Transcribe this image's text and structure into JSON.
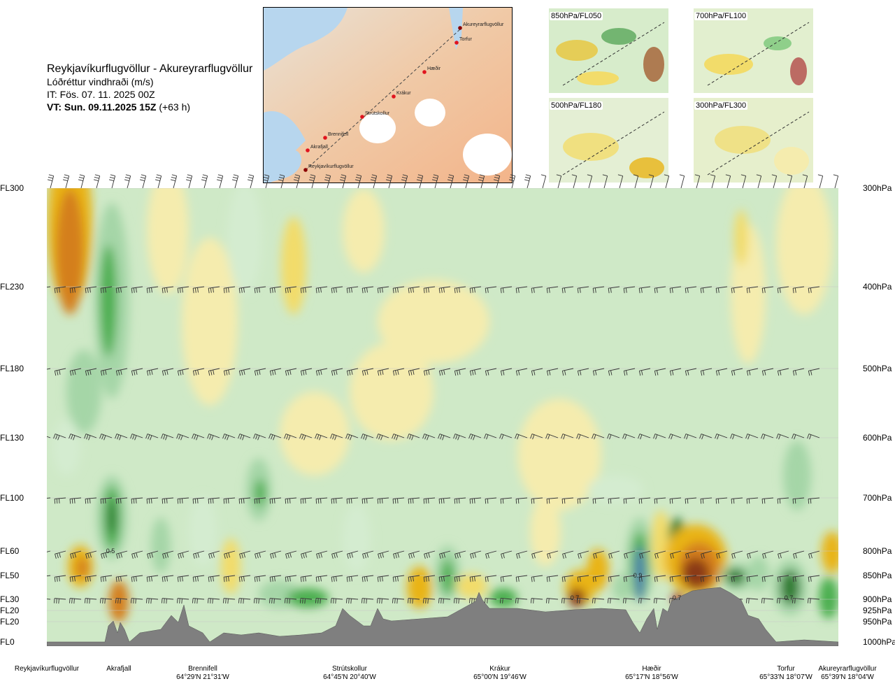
{
  "header": {
    "route": "Reykjavíkurflugvöllur - Akureyrarflugvöllur",
    "variable": "Lóðréttur vindhraði (m/s)",
    "init_time": "IT: Fös. 07. 11. 2025 00Z",
    "valid_prefix": "VT: Sun. 09.11.2025 15Z",
    "valid_suffix": "(+63 h)"
  },
  "map": {
    "waypoints": [
      "Akureyrarflugvöllur",
      "Torfur",
      "Hæðir",
      "Krákur",
      "Strútskollur",
      "Brennifell",
      "Akrafjall",
      "Reykjavíkurflugvöllur"
    ]
  },
  "insets": [
    {
      "label": "850hPa/FL050"
    },
    {
      "label": "700hPa/FL100"
    },
    {
      "label": "500hPa/FL180"
    },
    {
      "label": "300hPa/FL300"
    }
  ],
  "colors": {
    "strong_up_dark": "#2e7d32",
    "up_mid": "#4caf50",
    "up_light": "#a5d6a7",
    "up_pale": "#d4ecd0",
    "neutral": "#f4f9e6",
    "down_pale": "#f5ecae",
    "down_light": "#f2dc6a",
    "down_mid": "#e9b415",
    "down_strong": "#d47f1d",
    "down_dark": "#8b3a12",
    "up_extreme": "#4f7bb3",
    "down_extreme": "#a3121a",
    "terrain": "#7f7f7f"
  },
  "chart_data": {
    "type": "heatmap",
    "title": "Lóðréttur vindhraði (m/s)",
    "left_axis_labels": [
      "FL300",
      "FL230",
      "FL180",
      "FL130",
      "FL100",
      "FL60",
      "FL50",
      "FL30",
      "FL20",
      "FL20",
      "FL0"
    ],
    "right_axis_labels": [
      "300hPa",
      "400hPa",
      "500hPa",
      "600hPa",
      "700hPa",
      "800hPa",
      "850hPa",
      "900hPa",
      "925hPa",
      "950hPa",
      "1000hPa"
    ],
    "pressure_levels_hpa": [
      300,
      400,
      500,
      600,
      700,
      800,
      850,
      900,
      925,
      950,
      1000
    ],
    "value_labels": [
      "0.5",
      "0.9",
      "0.7",
      "0.7",
      "0.7"
    ],
    "locations": [
      {
        "name": "Reykjavíkurflugvöllur",
        "coord": ""
      },
      {
        "name": "Akrafjall",
        "coord": ""
      },
      {
        "name": "Brennifell",
        "coord": "64°29'N 21°31'W"
      },
      {
        "name": "Strútskollur",
        "coord": "64°45'N 20°40'W"
      },
      {
        "name": "Krákur",
        "coord": "65°00'N 19°46'W"
      },
      {
        "name": "Hæðir",
        "coord": "65°17'N 18°56'W"
      },
      {
        "name": "Torfur",
        "coord": "65°33'N 18°07'W"
      },
      {
        "name": "Akureyrarflugvöllur",
        "coord": "65°39'N 18°04'W"
      }
    ]
  }
}
